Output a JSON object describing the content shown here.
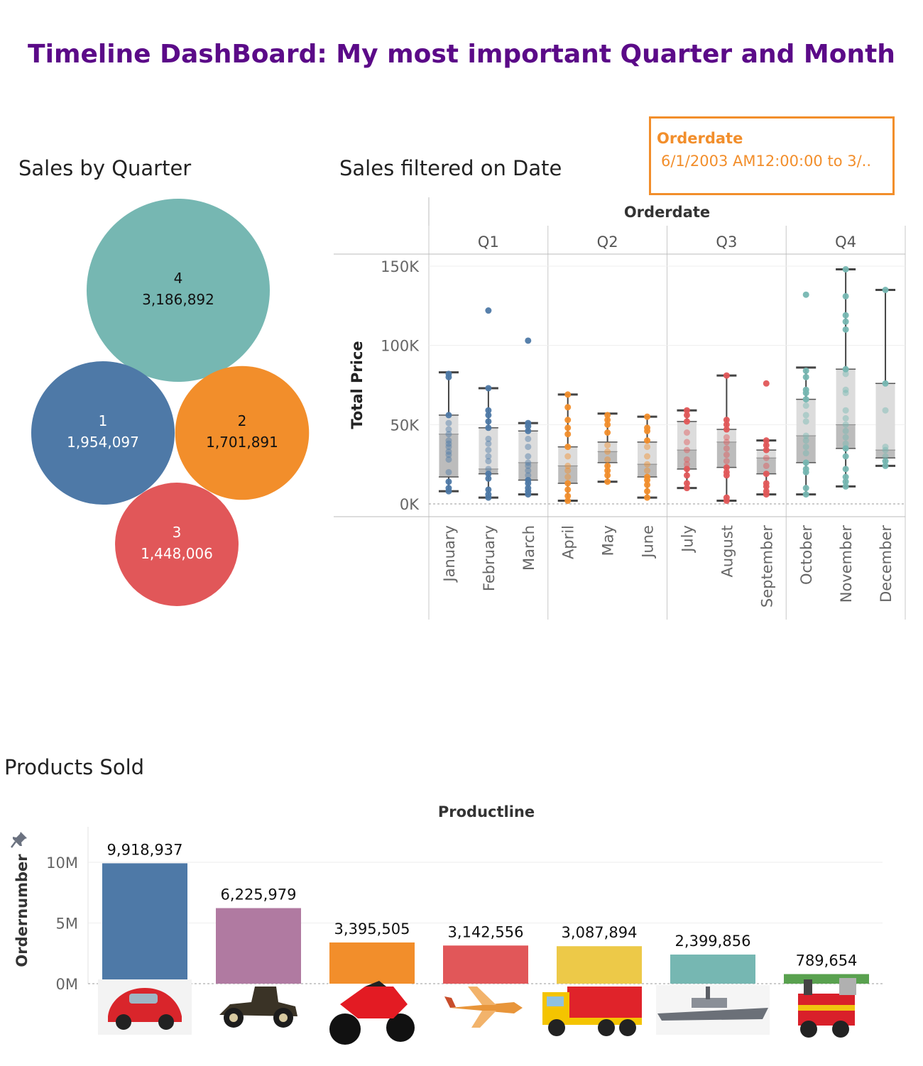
{
  "dashboard": {
    "title": "Timeline DashBoard: My most important Quarter and Month"
  },
  "filter": {
    "label": "Orderdate",
    "value": "6/1/2003 AM12:00:00 to 3/.."
  },
  "colors": {
    "title": "#5b0a88",
    "accent_orange": "#f28e2b",
    "q1": "#4e79a7",
    "q2": "#f28e2b",
    "q3": "#e15759",
    "q4": "#76b7b2"
  },
  "chart_data": [
    {
      "type": "bubble",
      "title": "Sales by Quarter",
      "categories": [
        "4",
        "1",
        "2",
        "3"
      ],
      "values": [
        3186892,
        1954097,
        1701891,
        1448006
      ],
      "labels": [
        "3,186,892",
        "1,954,097",
        "1,701,891",
        "1,448,006"
      ],
      "colors": [
        "#76b7b2",
        "#4e79a7",
        "#f28e2b",
        "#e15759"
      ]
    },
    {
      "type": "box",
      "title": "Sales filtered on Date",
      "column_header": "Orderdate",
      "quarters": [
        "Q1",
        "Q2",
        "Q3",
        "Q4"
      ],
      "ylabel": "Total Price",
      "ylim": [
        0,
        150000
      ],
      "yticks": [
        0,
        50000,
        100000,
        150000
      ],
      "ytick_labels": [
        "0K",
        "50K",
        "100K",
        "150K"
      ],
      "months": [
        {
          "name": "January",
          "quarter": 0,
          "min": 8000,
          "q1": 17000,
          "median": 44000,
          "q3": 56000,
          "max": 83000,
          "points": [
            8000,
            10000,
            14000,
            20000,
            28000,
            31000,
            33000,
            36000,
            38000,
            40000,
            44000,
            47000,
            51000,
            56000,
            80000,
            82000
          ]
        },
        {
          "name": "February",
          "quarter": 0,
          "min": 4000,
          "q1": 19000,
          "median": 22000,
          "q3": 48000,
          "max": 73000,
          "points": [
            4000,
            6000,
            9000,
            16000,
            19000,
            22000,
            27000,
            30000,
            34000,
            38000,
            41000,
            48000,
            52000,
            56000,
            59000,
            73000,
            122000
          ]
        },
        {
          "name": "March",
          "quarter": 0,
          "min": 6000,
          "q1": 15000,
          "median": 26000,
          "q3": 46000,
          "max": 51000,
          "points": [
            6000,
            8000,
            10000,
            13000,
            15000,
            18000,
            21000,
            24000,
            26000,
            30000,
            36000,
            41000,
            46000,
            49000,
            51000,
            103000
          ]
        },
        {
          "name": "April",
          "quarter": 1,
          "min": 2000,
          "q1": 13000,
          "median": 24000,
          "q3": 36000,
          "max": 69000,
          "points": [
            2000,
            5000,
            9000,
            13000,
            17000,
            21000,
            24000,
            30000,
            36000,
            44000,
            48000,
            53000,
            61000,
            69000
          ]
        },
        {
          "name": "May",
          "quarter": 1,
          "min": 14000,
          "q1": 26000,
          "median": 33000,
          "q3": 39000,
          "max": 57000,
          "points": [
            14000,
            18000,
            21000,
            24000,
            28000,
            33000,
            37000,
            45000,
            50000,
            53000,
            56000
          ]
        },
        {
          "name": "June",
          "quarter": 1,
          "min": 4000,
          "q1": 17000,
          "median": 25000,
          "q3": 39000,
          "max": 55000,
          "points": [
            4000,
            8000,
            12000,
            15000,
            17000,
            21000,
            25000,
            30000,
            36000,
            40000,
            46000,
            48000,
            55000
          ]
        },
        {
          "name": "July",
          "quarter": 2,
          "min": 10000,
          "q1": 22000,
          "median": 34000,
          "q3": 52000,
          "max": 59000,
          "points": [
            10000,
            13000,
            18000,
            22000,
            25000,
            28000,
            34000,
            39000,
            45000,
            52000,
            56000,
            59000
          ]
        },
        {
          "name": "August",
          "quarter": 2,
          "min": 2000,
          "q1": 23000,
          "median": 39000,
          "q3": 47000,
          "max": 81000,
          "points": [
            2000,
            4000,
            18000,
            20000,
            23000,
            27000,
            31000,
            35000,
            39000,
            42000,
            47000,
            50000,
            53000,
            81000
          ]
        },
        {
          "name": "September",
          "quarter": 2,
          "min": 6000,
          "q1": 19000,
          "median": 29000,
          "q3": 34000,
          "max": 40000,
          "points": [
            6000,
            8000,
            11000,
            13000,
            19000,
            24000,
            29000,
            34000,
            37000,
            40000,
            76000
          ]
        },
        {
          "name": "October",
          "quarter": 3,
          "min": 6000,
          "q1": 26000,
          "median": 43000,
          "q3": 66000,
          "max": 86000,
          "points": [
            6000,
            10000,
            20000,
            22000,
            26000,
            32000,
            36000,
            40000,
            43000,
            52000,
            56000,
            62000,
            66000,
            70000,
            72000,
            80000,
            84000,
            132000
          ]
        },
        {
          "name": "November",
          "quarter": 3,
          "min": 11000,
          "q1": 35000,
          "median": 50000,
          "q3": 85000,
          "max": 148000,
          "points": [
            11000,
            14000,
            17000,
            22000,
            30000,
            35000,
            38000,
            42000,
            46000,
            50000,
            54000,
            59000,
            70000,
            72000,
            82000,
            85000,
            110000,
            115000,
            119000,
            131000,
            148000
          ]
        },
        {
          "name": "December",
          "quarter": 3,
          "min": 24000,
          "q1": 29000,
          "median": 34000,
          "q3": 76000,
          "max": 135000,
          "points": [
            24000,
            27000,
            30000,
            34000,
            36000,
            59000,
            76000,
            135000
          ]
        }
      ]
    },
    {
      "type": "bar",
      "title": "Products Sold",
      "column_header": "Productline",
      "ylabel": "Ordernumber",
      "ylim": [
        0,
        12000000
      ],
      "yticks": [
        0,
        5000000,
        10000000
      ],
      "ytick_labels": [
        "0M",
        "5M",
        "10M"
      ],
      "categories": [
        "Classic Cars",
        "Vintage Cars",
        "Motorcycles",
        "Planes",
        "Trucks and Buses",
        "Ships",
        "Trains"
      ],
      "values": [
        9918937,
        6225979,
        3395505,
        3142556,
        3087894,
        2399856,
        789654
      ],
      "labels": [
        "9,918,937",
        "6,225,979",
        "3,395,505",
        "3,142,556",
        "3,087,894",
        "2,399,856",
        "789,654"
      ],
      "colors": [
        "#4e79a7",
        "#b07aa1",
        "#f28e2b",
        "#e15759",
        "#edc948",
        "#76b7b2",
        "#59a14f"
      ],
      "images": [
        "red-beetle-car",
        "vintage-car",
        "red-motorcycle",
        "cartoon-plane",
        "toy-truck",
        "warship",
        "toy-train"
      ]
    }
  ]
}
